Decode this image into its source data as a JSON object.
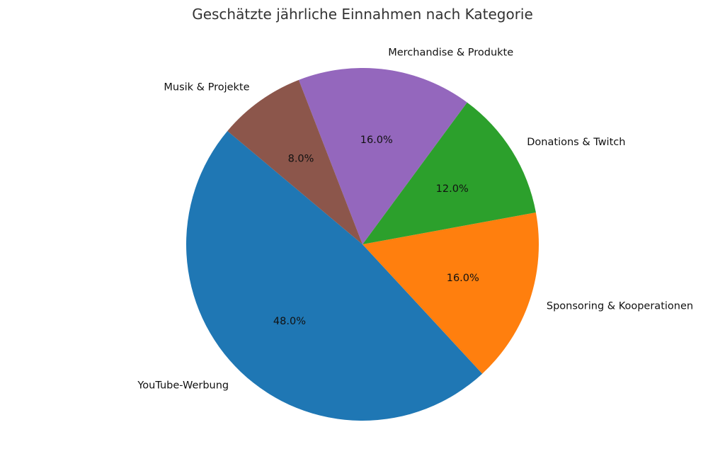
{
  "chart_data": {
    "type": "pie",
    "title": "Geschätzte jährliche Einnahmen nach Kategorie",
    "start_angle_deg": 140,
    "direction": "counterclockwise",
    "slices": [
      {
        "label": "YouTube-Werbung",
        "value": 48.0,
        "pct_text": "48.0%",
        "color": "#1f77b4"
      },
      {
        "label": "Sponsoring & Kooperationen",
        "value": 16.0,
        "pct_text": "16.0%",
        "color": "#ff7f0e"
      },
      {
        "label": "Donations & Twitch",
        "value": 12.0,
        "pct_text": "12.0%",
        "color": "#2ca02c"
      },
      {
        "label": "Merchandise & Produkte",
        "value": 16.0,
        "pct_text": "16.0%",
        "color": "#9467bd"
      },
      {
        "label": "Musik & Projekte",
        "value": 8.0,
        "pct_text": "8.0%",
        "color": "#8c564b"
      }
    ]
  }
}
